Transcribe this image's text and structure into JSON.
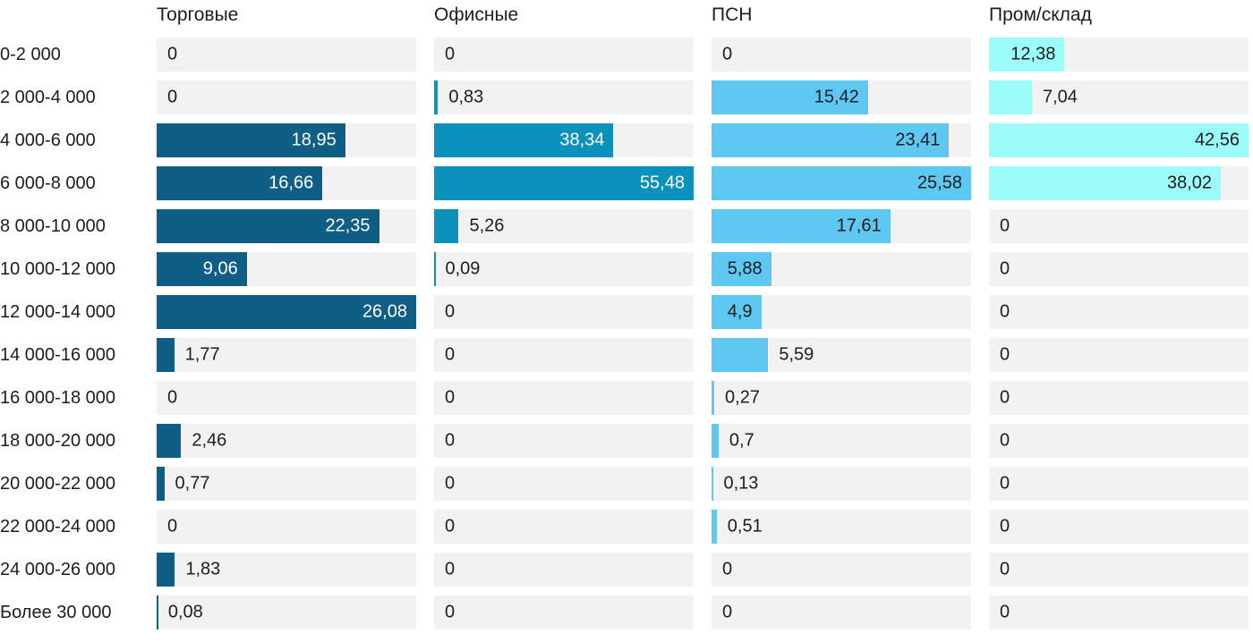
{
  "chart_data": {
    "type": "bar",
    "orientation": "horizontal",
    "grid": false,
    "legend_position": "column-headers",
    "track_color": "#f2f2f2",
    "text_color": "#1d1d1d",
    "categories": [
      "0-2 000",
      "2 000-4 000",
      "4 000-6 000",
      "6 000-8 000",
      "8 000-10 000",
      "10 000-12 000",
      "12 000-14 000",
      "14 000-16 000",
      "16 000-18 000",
      "18 000-20 000",
      "20 000-22 000",
      "22 000-24 000",
      "24 000-26 000",
      "Более 30 000"
    ],
    "value_scale_note": "each column is normalized to its own maximum value (max value = full column width)",
    "series": [
      {
        "name": "Торговые",
        "color": "#0e5e86",
        "inside_label_color": "#ffffff",
        "values": [
          0,
          0,
          18.95,
          16.66,
          22.35,
          9.06,
          26.08,
          1.77,
          0,
          2.46,
          0.77,
          0,
          1.83,
          0.08
        ],
        "labels": [
          "0",
          "0",
          "18,95",
          "16,66",
          "22,35",
          "9,06",
          "26,08",
          "1,77",
          "0",
          "2,46",
          "0,77",
          "0",
          "1,83",
          "0,08"
        ],
        "label_pos": [
          "zero",
          "zero",
          "in",
          "in",
          "in",
          "in",
          "in",
          "out",
          "zero",
          "out",
          "out",
          "zero",
          "out",
          "out"
        ]
      },
      {
        "name": "Офисные",
        "color": "#0a92bc",
        "inside_label_color": "#ffffff",
        "values": [
          0,
          0.83,
          38.34,
          55.48,
          5.26,
          0.09,
          0,
          0,
          0,
          0,
          0,
          0,
          0,
          0
        ],
        "labels": [
          "0",
          "0,83",
          "38,34",
          "55,48",
          "5,26",
          "0,09",
          "0",
          "0",
          "0",
          "0",
          "0",
          "0",
          "0",
          "0"
        ],
        "label_pos": [
          "zero",
          "out",
          "in",
          "in",
          "out",
          "out",
          "zero",
          "zero",
          "zero",
          "zero",
          "zero",
          "zero",
          "zero",
          "zero"
        ]
      },
      {
        "name": "ПСН",
        "color": "#5ec7f2",
        "inside_label_color": "#1d1d1d",
        "values": [
          0,
          15.42,
          23.41,
          25.58,
          17.61,
          5.88,
          4.9,
          5.59,
          0.27,
          0.7,
          0.13,
          0.51,
          0,
          0
        ],
        "labels": [
          "0",
          "15,42",
          "23,41",
          "25,58",
          "17,61",
          "5,88",
          "4,9",
          "5,59",
          "0,27",
          "0,7",
          "0,13",
          "0,51",
          "0",
          "0"
        ],
        "label_pos": [
          "zero",
          "in",
          "in",
          "in",
          "in",
          "in",
          "in",
          "out",
          "out",
          "out",
          "out",
          "out",
          "zero",
          "zero"
        ]
      },
      {
        "name": "Пром/склад",
        "color": "#9bfcfa",
        "inside_label_color": "#1d1d1d",
        "values": [
          12.38,
          7.04,
          42.56,
          38.02,
          0,
          0,
          0,
          0,
          0,
          0,
          0,
          0,
          0,
          0
        ],
        "labels": [
          "12,38",
          "7,04",
          "42,56",
          "38,02",
          "0",
          "0",
          "0",
          "0",
          "0",
          "0",
          "0",
          "0",
          "0",
          "0"
        ],
        "label_pos": [
          "in",
          "out",
          "in",
          "in",
          "zero",
          "zero",
          "zero",
          "zero",
          "zero",
          "zero",
          "zero",
          "zero",
          "zero",
          "zero"
        ]
      }
    ]
  }
}
